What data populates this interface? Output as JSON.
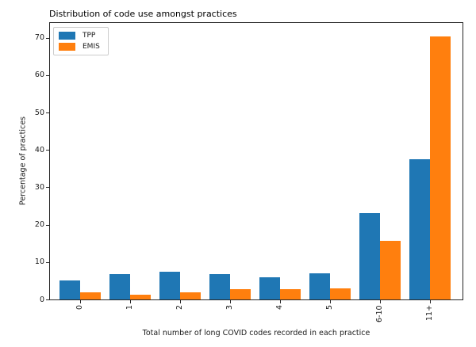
{
  "chart_data": {
    "type": "bar",
    "title": "Distribution of code use amongst practices",
    "xlabel": "Total number of long COVID codes recorded in each practice",
    "ylabel": "Percentage of practices",
    "categories": [
      "0",
      "1",
      "2",
      "3",
      "4",
      "5",
      "6-10",
      "11+"
    ],
    "series": [
      {
        "name": "TPP",
        "color": "#1f77b4",
        "values": [
          5.2,
          6.8,
          7.4,
          6.8,
          6.0,
          7.0,
          23.2,
          37.5
        ]
      },
      {
        "name": "EMIS",
        "color": "#ff7f0e",
        "values": [
          1.9,
          1.2,
          1.9,
          2.8,
          2.7,
          3.0,
          15.8,
          70.4
        ]
      }
    ],
    "yticks": [
      0,
      10,
      20,
      30,
      40,
      50,
      60,
      70
    ],
    "ylim": [
      0,
      74
    ],
    "grid": false,
    "legend_position": "upper left"
  }
}
